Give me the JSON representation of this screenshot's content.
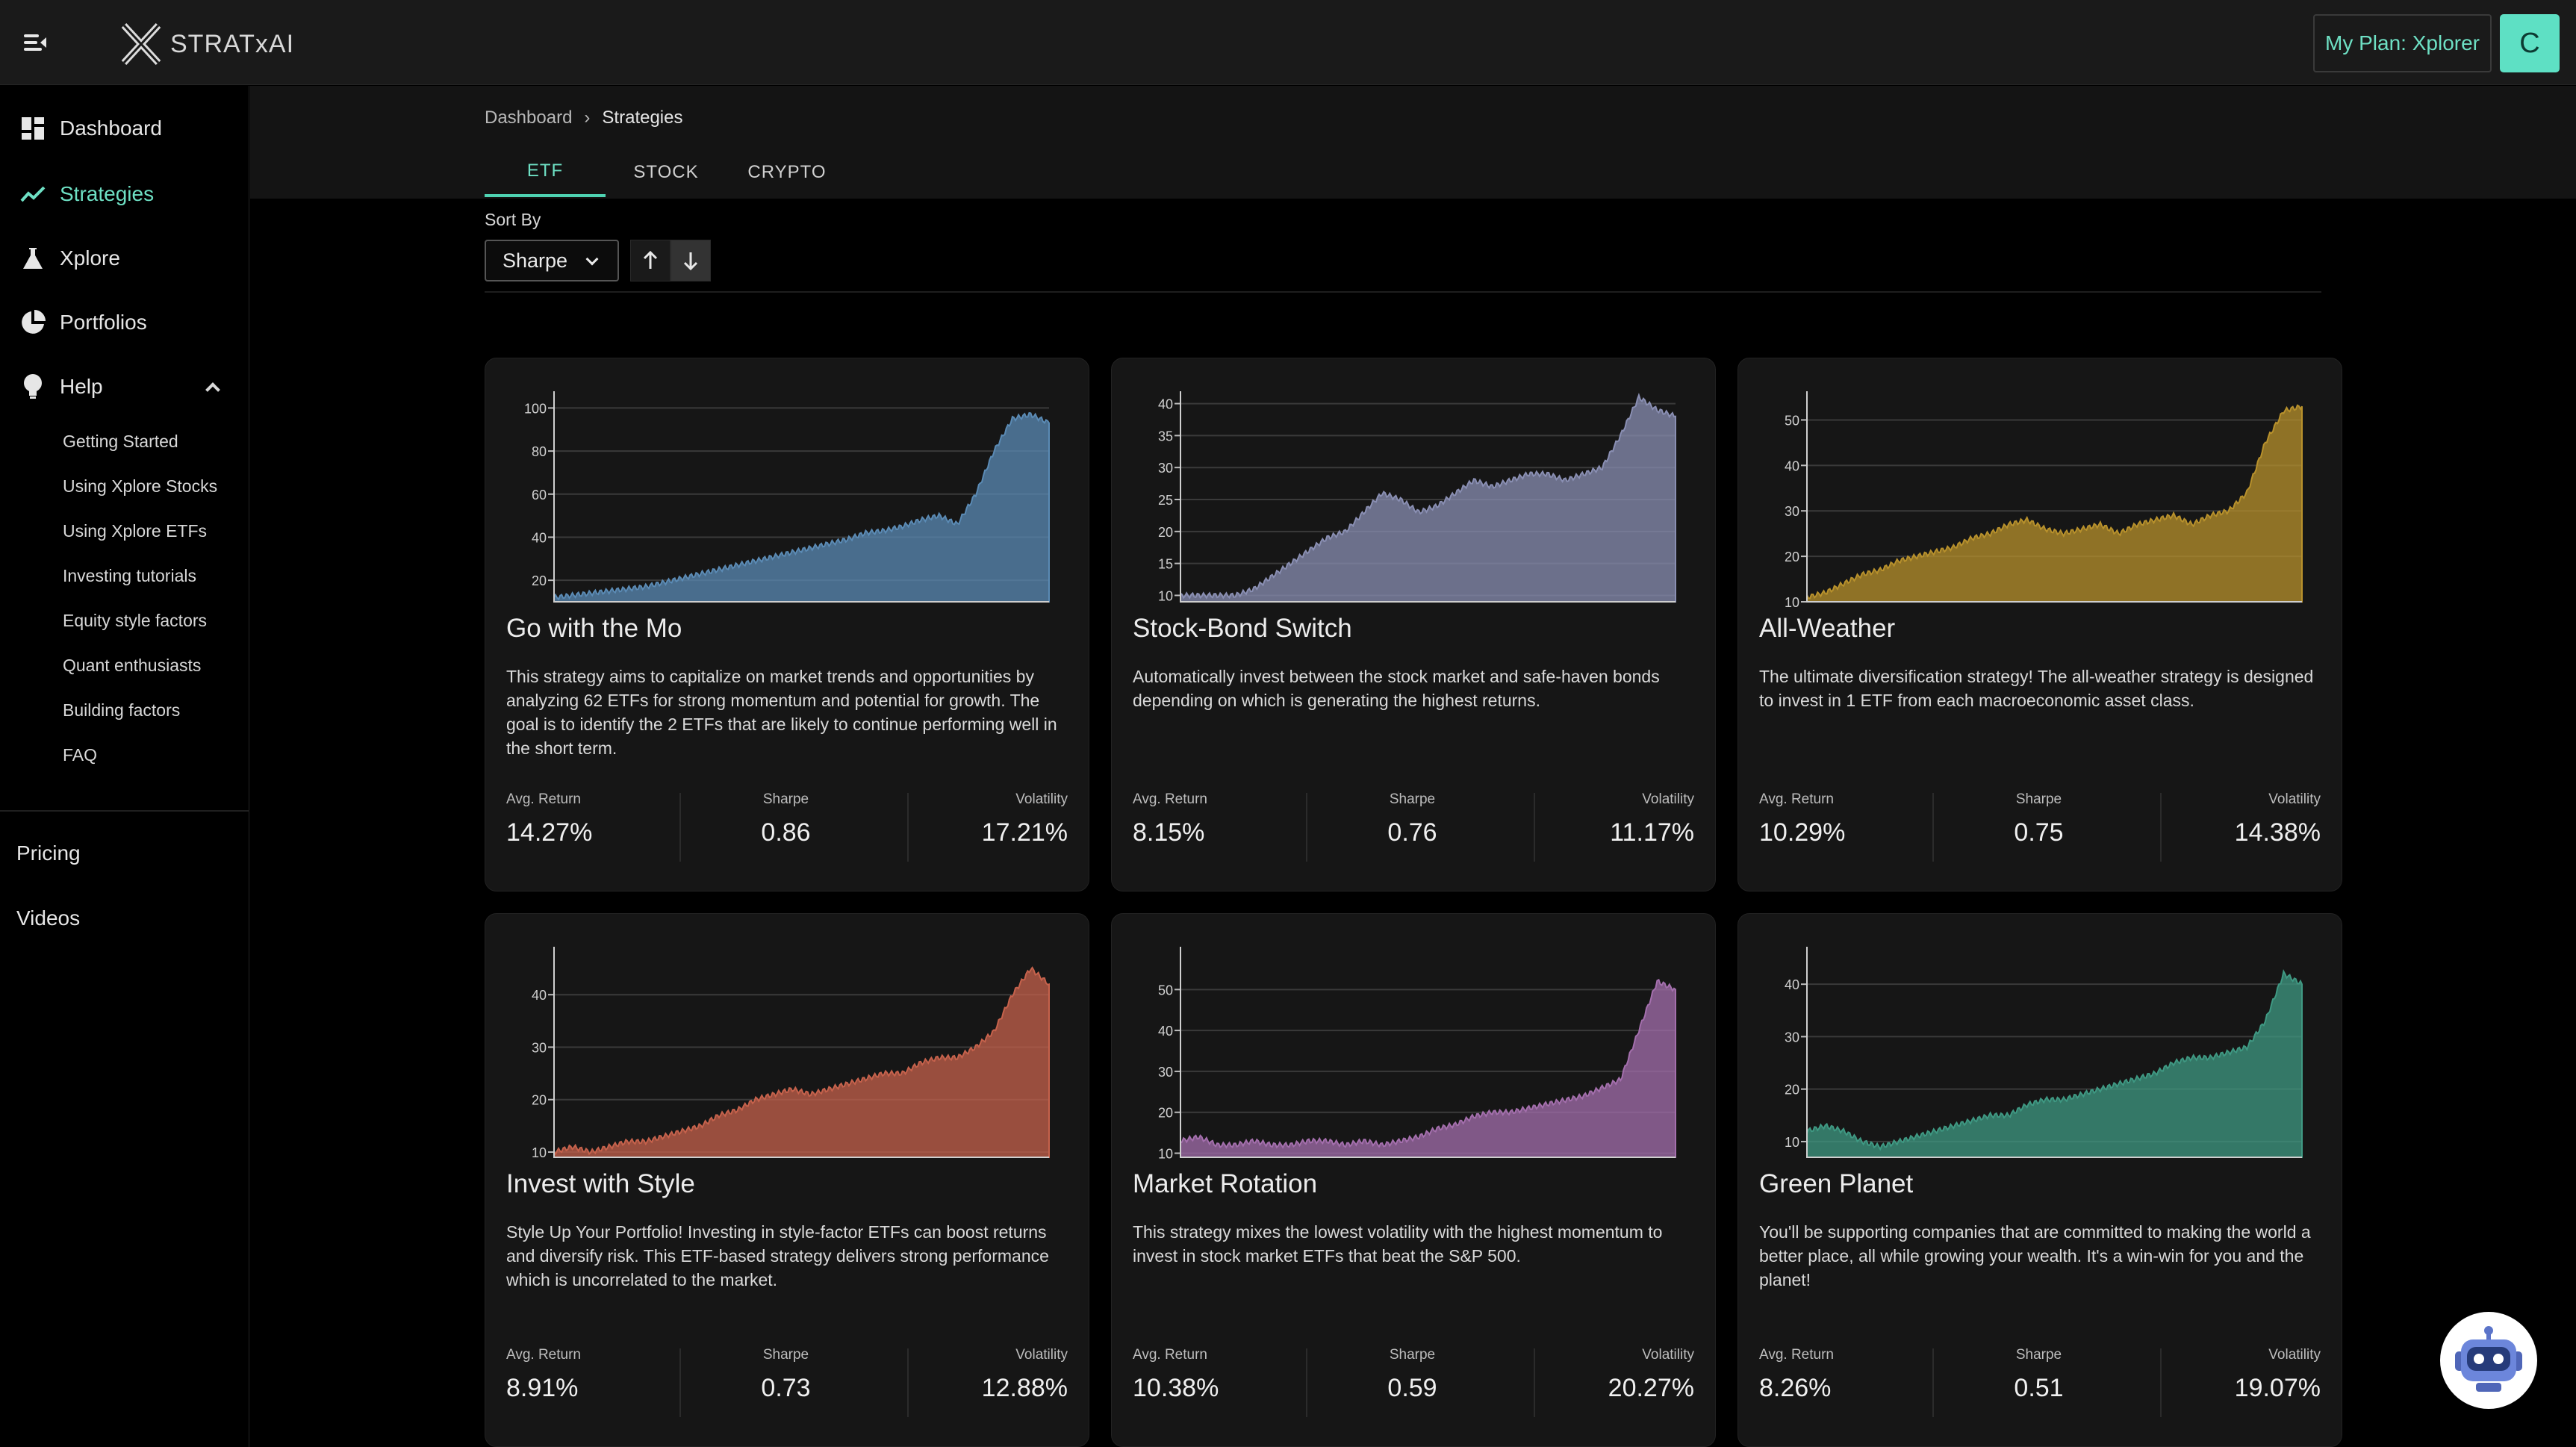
{
  "brand": {
    "name": "STRATxAI"
  },
  "header": {
    "plan_label": "My Plan: Xplorer",
    "avatar_initial": "C"
  },
  "sidebar": {
    "items": [
      {
        "label": "Dashboard",
        "icon": "dashboard-icon"
      },
      {
        "label": "Strategies",
        "icon": "trending-up-icon",
        "active": true
      },
      {
        "label": "Xplore",
        "icon": "flask-icon"
      },
      {
        "label": "Portfolios",
        "icon": "pie-chart-icon"
      },
      {
        "label": "Help",
        "icon": "lightbulb-icon",
        "expanded": true
      }
    ],
    "help_items": [
      "Getting Started",
      "Using Xplore Stocks",
      "Using Xplore ETFs",
      "Investing tutorials",
      "Equity style factors",
      "Quant enthusiasts",
      "Building factors",
      "FAQ"
    ],
    "footer_links": [
      "Pricing",
      "Videos"
    ]
  },
  "breadcrumb": {
    "root": "Dashboard",
    "separator": "›",
    "current": "Strategies"
  },
  "tabs": [
    "ETF",
    "STOCK",
    "CRYPTO"
  ],
  "sort": {
    "label": "Sort By",
    "value": "Sharpe",
    "descending": true
  },
  "metric_labels": {
    "ret": "Avg. Return",
    "sharpe": "Sharpe",
    "vol": "Volatility"
  },
  "cards": [
    {
      "title": "Go with the Mo",
      "description": "This strategy aims to capitalize on market trends and opportunities by analyzing 62 ETFs for strong momentum and potential for growth. The goal is to identify the 2 ETFs that are likely to continue performing well in the short term.",
      "avg_return": "14.27%",
      "sharpe": "0.86",
      "volatility": "17.21%"
    },
    {
      "title": "Stock-Bond Switch",
      "description": "Automatically invest between the stock market and safe-haven bonds depending on which is generating the highest returns.",
      "avg_return": "8.15%",
      "sharpe": "0.76",
      "volatility": "11.17%"
    },
    {
      "title": "All-Weather",
      "description": "The ultimate diversification strategy! The all-weather strategy is designed to invest in 1 ETF from each macroeconomic asset class.",
      "avg_return": "10.29%",
      "sharpe": "0.75",
      "volatility": "14.38%"
    },
    {
      "title": "Invest with Style",
      "description": "Style Up Your Portfolio! Investing in style-factor ETFs can boost returns and diversify risk. This ETF-based strategy delivers strong performance which is uncorrelated to the market.",
      "avg_return": "8.91%",
      "sharpe": "0.73",
      "volatility": "12.88%"
    },
    {
      "title": "Market Rotation",
      "description": "This strategy mixes the lowest volatility with the highest momentum to invest in stock market ETFs that beat the S&P 500.",
      "avg_return": "10.38%",
      "sharpe": "0.59",
      "volatility": "20.27%"
    },
    {
      "title": "Green Planet",
      "description": "You'll be supporting companies that are committed to making the world a better place, all while growing your wealth. It's a win-win for you and the planet!",
      "avg_return": "8.26%",
      "sharpe": "0.51",
      "volatility": "19.07%"
    }
  ],
  "chart_data": [
    {
      "type": "area",
      "color": "#5b8bb5",
      "ylim": [
        10,
        105
      ],
      "ticks": [
        20,
        40,
        60,
        80,
        100
      ],
      "values": [
        12,
        13,
        14,
        15,
        16,
        17,
        19,
        21,
        23,
        25,
        27,
        29,
        31,
        33,
        35,
        37,
        39,
        42,
        43,
        45,
        48,
        50,
        46,
        60,
        80,
        95,
        97,
        93
      ]
    },
    {
      "type": "area",
      "color": "#8a8fb3",
      "ylim": [
        9,
        41
      ],
      "ticks": [
        10,
        15,
        20,
        25,
        30,
        35,
        40
      ],
      "values": [
        10,
        10,
        10,
        10,
        11,
        13,
        15,
        17,
        19,
        20,
        23,
        26,
        25,
        23,
        24,
        26,
        28,
        27,
        28,
        29,
        29,
        28,
        29,
        30,
        35,
        41,
        39,
        38
      ]
    },
    {
      "type": "area",
      "color": "#b8912c",
      "ylim": [
        10,
        55
      ],
      "ticks": [
        10,
        20,
        30,
        40,
        50
      ],
      "values": [
        11,
        12,
        14,
        16,
        17,
        19,
        20,
        21,
        22,
        24,
        25,
        27,
        28,
        26,
        25,
        26,
        27,
        25,
        27,
        28,
        29,
        27,
        29,
        30,
        34,
        45,
        52,
        53
      ]
    },
    {
      "type": "area",
      "color": "#c6624c",
      "ylim": [
        9,
        48
      ],
      "ticks": [
        10,
        20,
        30,
        40
      ],
      "values": [
        10,
        11,
        10,
        11,
        12,
        12,
        13,
        14,
        15,
        17,
        18,
        20,
        21,
        22,
        21,
        22,
        23,
        24,
        25,
        25,
        27,
        28,
        28,
        30,
        33,
        40,
        45,
        42
      ]
    },
    {
      "type": "area",
      "color": "#a46fad",
      "ylim": [
        9,
        59
      ],
      "ticks": [
        10,
        20,
        30,
        40,
        50
      ],
      "values": [
        13,
        14,
        12,
        12,
        13,
        12,
        12,
        13,
        13,
        12,
        13,
        12,
        13,
        14,
        16,
        17,
        19,
        20,
        20,
        21,
        22,
        23,
        24,
        26,
        28,
        40,
        52,
        50
      ]
    },
    {
      "type": "area",
      "color": "#3f9983",
      "ylim": [
        7,
        46
      ],
      "ticks": [
        10,
        20,
        30,
        40
      ],
      "values": [
        12,
        13,
        12,
        10,
        9,
        10,
        11,
        12,
        13,
        14,
        15,
        15,
        17,
        18,
        18,
        19,
        20,
        21,
        22,
        23,
        25,
        26,
        26,
        27,
        28,
        33,
        42,
        40
      ]
    }
  ]
}
